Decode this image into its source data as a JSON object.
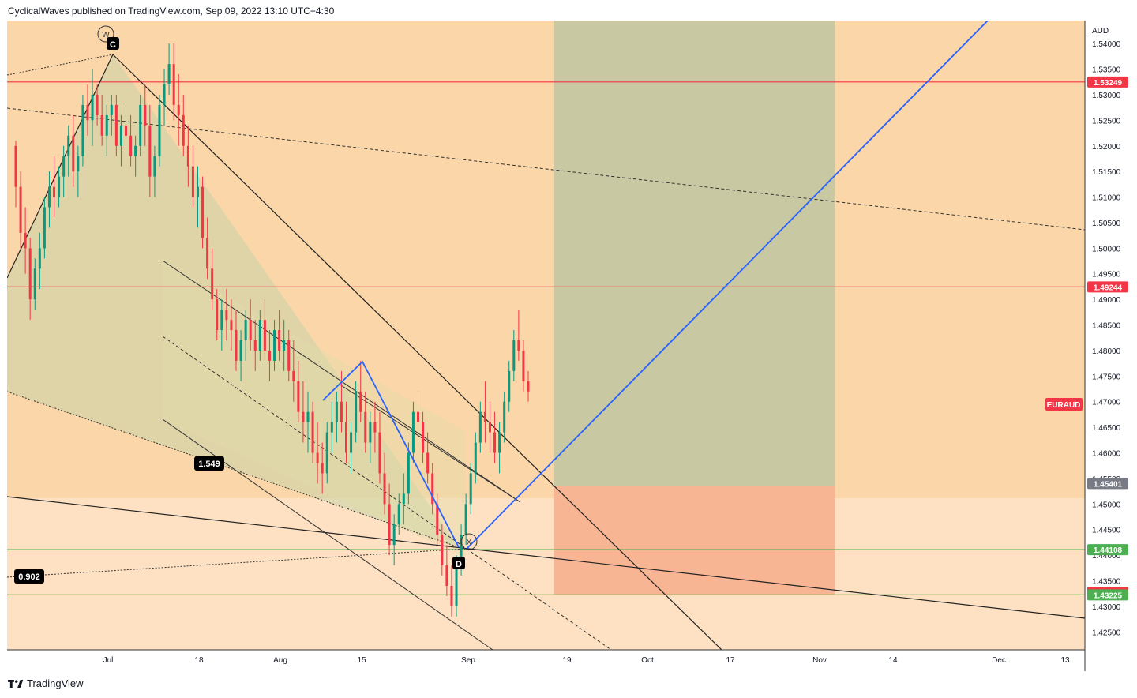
{
  "header": {
    "text": "CyclicalWaves published on TradingView.com, Sep 09, 2022 13:10 UTC+4:30"
  },
  "footer": {
    "brand": "TradingView",
    "logo_icon": "tradingview-logo-icon"
  },
  "chart_data": {
    "type": "candlestick",
    "symbol": "EURAUD",
    "currency": "AUD",
    "y_axis_ticks": [
      "1.54000",
      "1.53500",
      "1.53000",
      "1.52500",
      "1.52000",
      "1.51500",
      "1.51000",
      "1.50500",
      "1.50000",
      "1.49500",
      "1.49000",
      "1.48500",
      "1.48000",
      "1.47500",
      "1.47000",
      "1.46500",
      "1.46000",
      "1.45500",
      "1.45000",
      "1.44500",
      "1.44000",
      "1.43500",
      "1.43000",
      "1.42500"
    ],
    "x_axis_ticks": [
      "Jul",
      "18",
      "Aug",
      "15",
      "Sep",
      "19",
      "Oct",
      "17",
      "Nov",
      "14",
      "Dec",
      "13"
    ],
    "ylim": [
      1.4215,
      1.5445
    ],
    "price_tags": [
      {
        "value": "1.53249",
        "color": "#f23645"
      },
      {
        "value": "1.49244",
        "color": "#f23645"
      },
      {
        "value": "1.45401",
        "color": "#787b86"
      },
      {
        "value": "1.44108",
        "color": "#4caf50"
      },
      {
        "value": "1.43275",
        "color": "#f23645"
      },
      {
        "value": "1.43225",
        "color": "#4caf50"
      }
    ],
    "symbol_tag": {
      "label": "EURAUD",
      "color": "#f23645"
    },
    "horizontal_lines": [
      {
        "price": 1.53249,
        "color": "#f23645"
      },
      {
        "price": 1.49244,
        "color": "#f23645"
      },
      {
        "price": 1.44108,
        "color": "#4caf50"
      },
      {
        "price": 1.43225,
        "color": "#4caf50"
      }
    ],
    "annotations": {
      "wave_label": "W",
      "point_c": "C",
      "point_d": "D",
      "point_x": "X",
      "ratio_1": "1.549",
      "ratio_2": "0.902"
    },
    "position_zone": {
      "entry": 1.45401,
      "stop": 1.43275,
      "target": 1.5445
    },
    "colors": {
      "background": "#fbd6a8",
      "candle_up": "#089981",
      "candle_down": "#f23645",
      "zone_profit": "#c8c8a2",
      "zone_loss": "#f8b593"
    },
    "ohlc": [
      [
        1.52,
        1.521,
        1.508,
        1.512
      ],
      [
        1.512,
        1.515,
        1.5,
        1.503
      ],
      [
        1.503,
        1.508,
        1.495,
        1.5
      ],
      [
        1.5,
        1.502,
        1.486,
        1.49
      ],
      [
        1.49,
        1.498,
        1.488,
        1.496
      ],
      [
        1.496,
        1.503,
        1.492,
        1.5
      ],
      [
        1.5,
        1.51,
        1.498,
        1.508
      ],
      [
        1.508,
        1.515,
        1.504,
        1.512
      ],
      [
        1.512,
        1.518,
        1.506,
        1.51
      ],
      [
        1.51,
        1.516,
        1.508,
        1.514
      ],
      [
        1.514,
        1.52,
        1.51,
        1.518
      ],
      [
        1.518,
        1.524,
        1.514,
        1.522
      ],
      [
        1.522,
        1.526,
        1.512,
        1.515
      ],
      [
        1.515,
        1.52,
        1.51,
        1.518
      ],
      [
        1.518,
        1.53,
        1.516,
        1.528
      ],
      [
        1.528,
        1.532,
        1.522,
        1.525
      ],
      [
        1.525,
        1.535,
        1.52,
        1.53
      ],
      [
        1.53,
        1.532,
        1.524,
        1.526
      ],
      [
        1.526,
        1.53,
        1.52,
        1.522
      ],
      [
        1.522,
        1.528,
        1.518,
        1.526
      ],
      [
        1.526,
        1.53,
        1.522,
        1.528
      ],
      [
        1.528,
        1.53,
        1.518,
        1.52
      ],
      [
        1.52,
        1.526,
        1.516,
        1.524
      ],
      [
        1.524,
        1.528,
        1.52,
        1.522
      ],
      [
        1.522,
        1.526,
        1.516,
        1.518
      ],
      [
        1.518,
        1.522,
        1.514,
        1.52
      ],
      [
        1.52,
        1.53,
        1.518,
        1.528
      ],
      [
        1.528,
        1.532,
        1.52,
        1.524
      ],
      [
        1.524,
        1.528,
        1.51,
        1.514
      ],
      [
        1.514,
        1.52,
        1.51,
        1.518
      ],
      [
        1.518,
        1.53,
        1.516,
        1.528
      ],
      [
        1.528,
        1.535,
        1.524,
        1.532
      ],
      [
        1.532,
        1.54,
        1.53,
        1.536
      ],
      [
        1.536,
        1.54,
        1.525,
        1.528
      ],
      [
        1.528,
        1.534,
        1.52,
        1.526
      ],
      [
        1.526,
        1.53,
        1.518,
        1.52
      ],
      [
        1.52,
        1.524,
        1.512,
        1.516
      ],
      [
        1.516,
        1.52,
        1.508,
        1.51
      ],
      [
        1.51,
        1.516,
        1.504,
        1.512
      ],
      [
        1.512,
        1.514,
        1.5,
        1.502
      ],
      [
        1.502,
        1.506,
        1.494,
        1.496
      ],
      [
        1.496,
        1.5,
        1.488,
        1.49
      ],
      [
        1.49,
        1.492,
        1.482,
        1.484
      ],
      [
        1.484,
        1.49,
        1.48,
        1.488
      ],
      [
        1.488,
        1.492,
        1.482,
        1.486
      ],
      [
        1.486,
        1.49,
        1.48,
        1.484
      ],
      [
        1.484,
        1.488,
        1.476,
        1.478
      ],
      [
        1.478,
        1.484,
        1.474,
        1.482
      ],
      [
        1.482,
        1.488,
        1.478,
        1.486
      ],
      [
        1.486,
        1.49,
        1.48,
        1.482
      ],
      [
        1.482,
        1.486,
        1.476,
        1.48
      ],
      [
        1.48,
        1.488,
        1.478,
        1.486
      ],
      [
        1.486,
        1.49,
        1.478,
        1.48
      ],
      [
        1.48,
        1.484,
        1.474,
        1.478
      ],
      [
        1.478,
        1.486,
        1.476,
        1.484
      ],
      [
        1.484,
        1.488,
        1.478,
        1.48
      ],
      [
        1.48,
        1.486,
        1.476,
        1.482
      ],
      [
        1.482,
        1.484,
        1.474,
        1.476
      ],
      [
        1.476,
        1.482,
        1.47,
        1.474
      ],
      [
        1.474,
        1.478,
        1.466,
        1.468
      ],
      [
        1.468,
        1.474,
        1.462,
        1.466
      ],
      [
        1.466,
        1.472,
        1.46,
        1.468
      ],
      [
        1.468,
        1.47,
        1.458,
        1.46
      ],
      [
        1.46,
        1.466,
        1.454,
        1.458
      ],
      [
        1.458,
        1.462,
        1.452,
        1.456
      ],
      [
        1.456,
        1.466,
        1.454,
        1.464
      ],
      [
        1.464,
        1.47,
        1.46,
        1.466
      ],
      [
        1.466,
        1.472,
        1.462,
        1.47
      ],
      [
        1.47,
        1.476,
        1.464,
        1.466
      ],
      [
        1.466,
        1.47,
        1.458,
        1.46
      ],
      [
        1.46,
        1.466,
        1.456,
        1.464
      ],
      [
        1.464,
        1.474,
        1.462,
        1.472
      ],
      [
        1.472,
        1.478,
        1.466,
        1.468
      ],
      [
        1.468,
        1.472,
        1.46,
        1.462
      ],
      [
        1.462,
        1.468,
        1.458,
        1.466
      ],
      [
        1.466,
        1.47,
        1.46,
        1.464
      ],
      [
        1.464,
        1.468,
        1.454,
        1.456
      ],
      [
        1.456,
        1.46,
        1.448,
        1.45
      ],
      [
        1.45,
        1.454,
        1.44,
        1.442
      ],
      [
        1.442,
        1.448,
        1.438,
        1.446
      ],
      [
        1.446,
        1.452,
        1.444,
        1.45
      ],
      [
        1.45,
        1.456,
        1.446,
        1.452
      ],
      [
        1.452,
        1.462,
        1.45,
        1.46
      ],
      [
        1.46,
        1.47,
        1.458,
        1.468
      ],
      [
        1.468,
        1.472,
        1.464,
        1.466
      ],
      [
        1.466,
        1.468,
        1.458,
        1.46
      ],
      [
        1.46,
        1.464,
        1.454,
        1.456
      ],
      [
        1.456,
        1.458,
        1.448,
        1.45
      ],
      [
        1.45,
        1.452,
        1.442,
        1.444
      ],
      [
        1.444,
        1.446,
        1.436,
        1.438
      ],
      [
        1.438,
        1.442,
        1.432,
        1.434
      ],
      [
        1.434,
        1.438,
        1.428,
        1.43
      ],
      [
        1.43,
        1.44,
        1.428,
        1.438
      ],
      [
        1.438,
        1.446,
        1.436,
        1.444
      ],
      [
        1.444,
        1.452,
        1.442,
        1.45
      ],
      [
        1.45,
        1.458,
        1.448,
        1.456
      ],
      [
        1.456,
        1.464,
        1.454,
        1.462
      ],
      [
        1.462,
        1.47,
        1.46,
        1.468
      ],
      [
        1.468,
        1.474,
        1.462,
        1.466
      ],
      [
        1.466,
        1.47,
        1.46,
        1.464
      ],
      [
        1.464,
        1.468,
        1.458,
        1.46
      ],
      [
        1.46,
        1.466,
        1.456,
        1.464
      ],
      [
        1.464,
        1.472,
        1.462,
        1.47
      ],
      [
        1.47,
        1.478,
        1.468,
        1.476
      ],
      [
        1.476,
        1.484,
        1.474,
        1.482
      ],
      [
        1.482,
        1.488,
        1.478,
        1.48
      ],
      [
        1.48,
        1.482,
        1.472,
        1.474
      ],
      [
        1.474,
        1.476,
        1.47,
        1.472
      ]
    ],
    "ohlc_start_x": 11,
    "ohlc_end_x": 660
  }
}
